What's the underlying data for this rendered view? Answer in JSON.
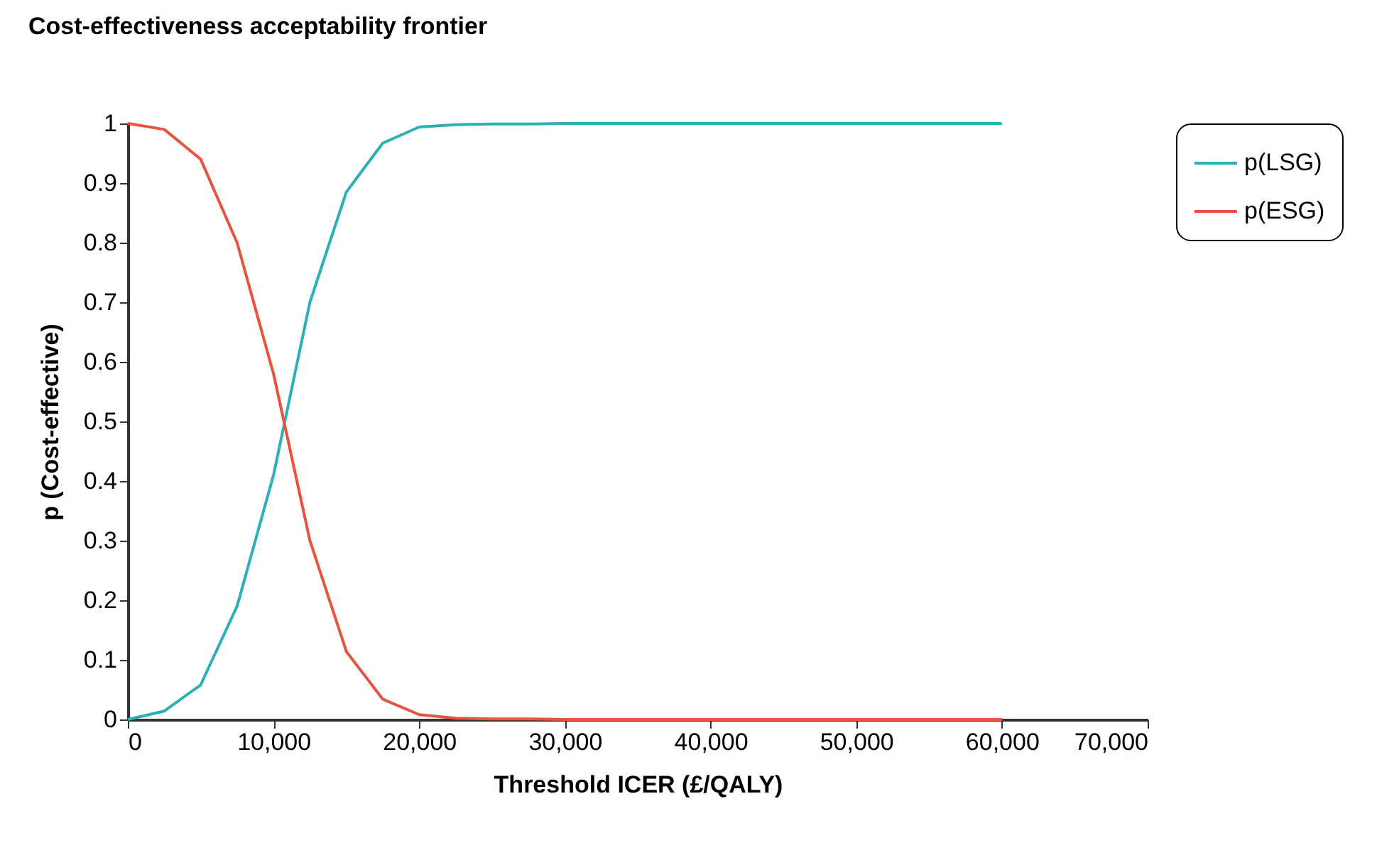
{
  "chart_data": {
    "type": "line",
    "title": "Cost-effectiveness acceptability frontier",
    "xlabel": "Threshold ICER (£/QALY)",
    "ylabel": "p (Cost-effective)",
    "x": [
      0,
      2500,
      5000,
      7500,
      10000,
      12500,
      15000,
      17500,
      20000,
      22500,
      25000,
      27500,
      30000,
      32500,
      35000,
      37500,
      40000,
      42500,
      45000,
      47500,
      50000,
      52500,
      55000,
      57500,
      60000
    ],
    "series": [
      {
        "name": "p(LSG)",
        "color": "#2ab0b5",
        "values": [
          0,
          0.014,
          0.058,
          0.19,
          0.41,
          0.7,
          0.885,
          0.967,
          0.994,
          0.998,
          0.999,
          0.999,
          1,
          1,
          1,
          1,
          1,
          1,
          1,
          1,
          1,
          1,
          1,
          1,
          1
        ]
      },
      {
        "name": "p(ESG)",
        "color": "#e8533f",
        "values": [
          1,
          0.99,
          0.94,
          0.8,
          0.58,
          0.3,
          0.114,
          0.034,
          0.008,
          0.002,
          0.001,
          0.001,
          0,
          0,
          0,
          0,
          0,
          0,
          0,
          0,
          0,
          0,
          0,
          0,
          0
        ]
      }
    ],
    "xlim": [
      0,
      70000
    ],
    "xticks": [
      0,
      {
        "value": 10000,
        "label": "10,000"
      },
      {
        "value": 20000,
        "label": "20,000"
      },
      {
        "value": 30000,
        "label": "30,000"
      },
      {
        "value": 40000,
        "label": "40,000"
      },
      {
        "value": 50000,
        "label": "50,000"
      },
      {
        "value": 60000,
        "label": "60,000"
      },
      {
        "value": 70000,
        "label": "70,000"
      }
    ],
    "ylim": [
      0,
      1
    ],
    "yticks": [
      0,
      0.1,
      0.2,
      0.3,
      0.4,
      0.5,
      0.6,
      0.7,
      0.8,
      0.9,
      1
    ],
    "grid": false,
    "legend": "right",
    "marker": "none",
    "line_style": "solid"
  }
}
